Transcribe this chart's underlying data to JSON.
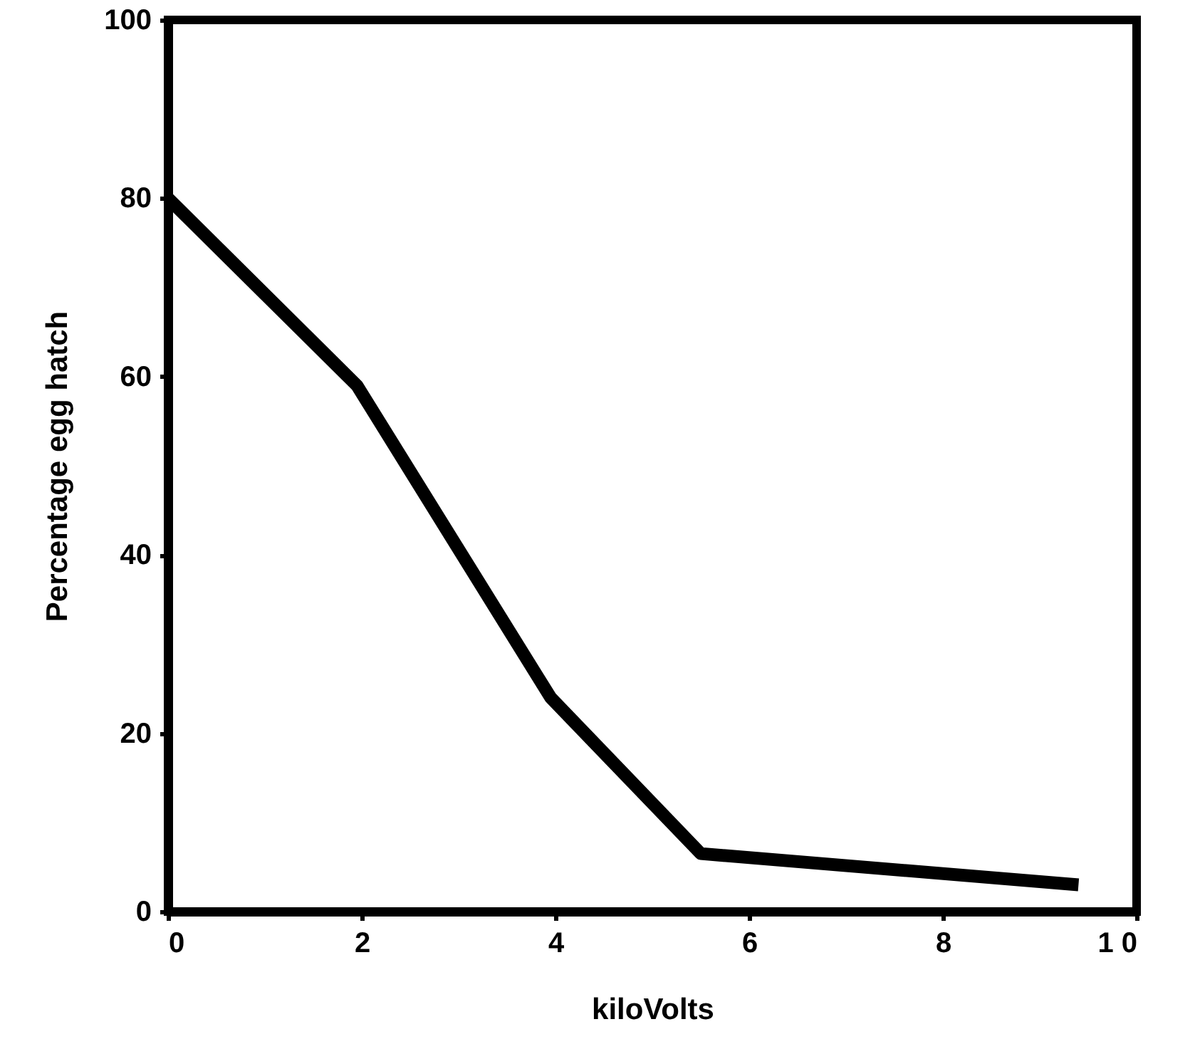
{
  "chart_data": {
    "type": "line",
    "xlabel": "kiloVolts",
    "ylabel": "Percentage  egg  hatch",
    "x": [
      0,
      1.95,
      3.95,
      5.5,
      9.4
    ],
    "series": [
      {
        "color": "#000000",
        "values": [
          80,
          59,
          24,
          6.5,
          3
        ]
      }
    ],
    "xlim": [
      0,
      10
    ],
    "xticks": [
      0,
      2,
      4,
      6,
      8,
      {
        "value": 10,
        "label": "1 0"
      }
    ],
    "ylim": [
      0,
      100
    ],
    "yticks": [
      0,
      20,
      40,
      60,
      80,
      100
    ],
    "grid": false,
    "marker": "none",
    "line_style": "solid"
  }
}
